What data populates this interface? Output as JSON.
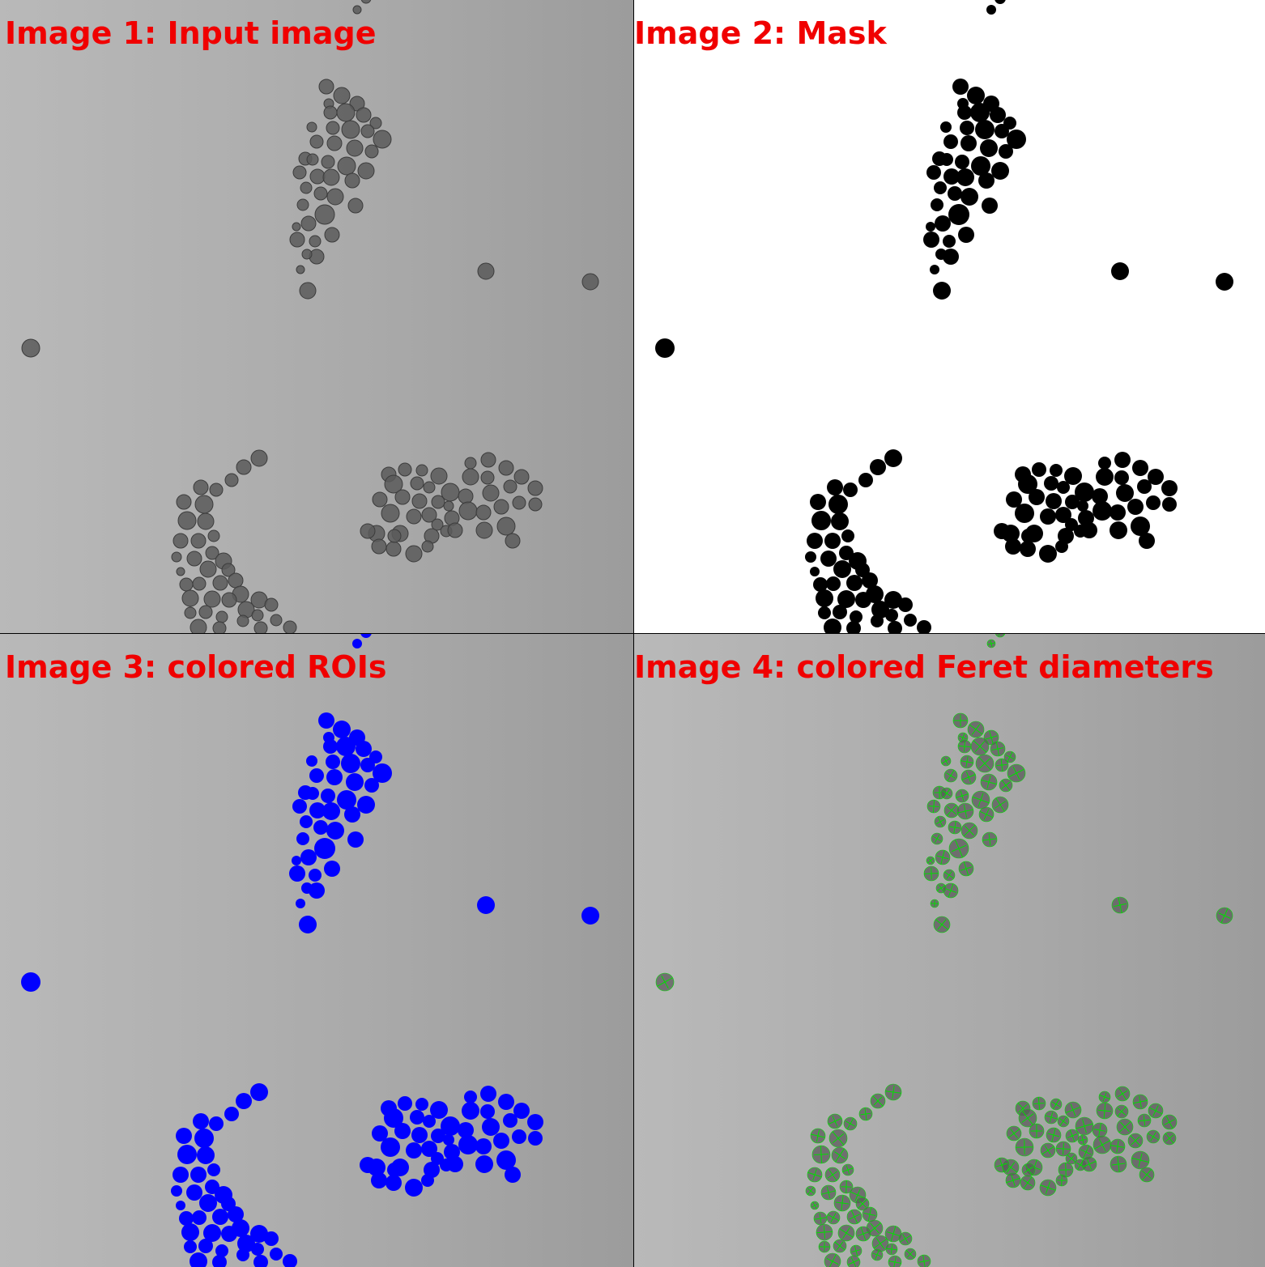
{
  "panels": [
    {
      "caption": "Image 1: Input image",
      "style": "tem-grayscale"
    },
    {
      "caption": "Image 2: Mask",
      "style": "binary-mask"
    },
    {
      "caption": "Image 3: colored ROIs",
      "style": "roi-overlay"
    },
    {
      "caption": "Image 4: colored Feret diameters",
      "style": "feret-overlay"
    }
  ],
  "colors": {
    "caption": "#f00000",
    "particle_gray": "#5a5a5a",
    "mask_black": "#000000",
    "roi_blue": "#0000ff",
    "feret_green": "#00e000"
  }
}
